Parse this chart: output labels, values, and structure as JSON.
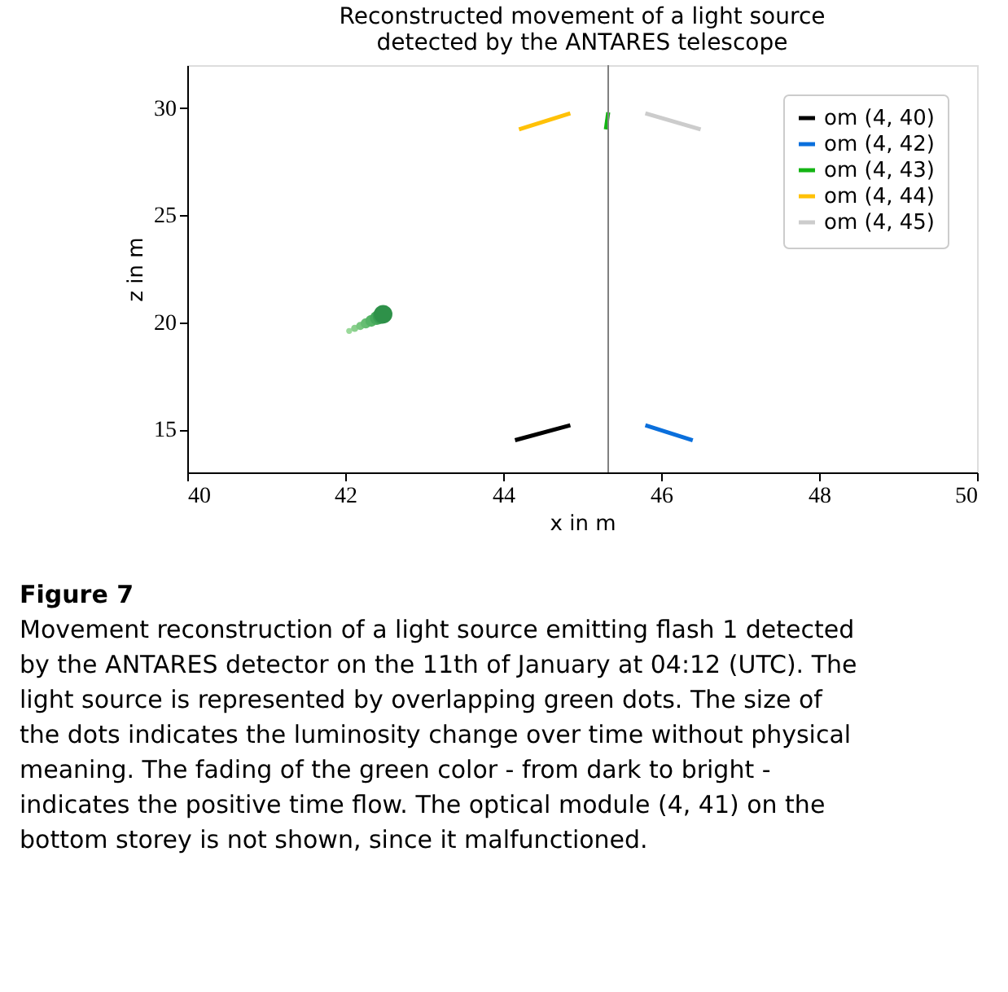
{
  "chart_data": {
    "type": "line",
    "title": [
      "Reconstructed movement of a light source",
      "detected by the ANTARES telescope"
    ],
    "xlabel": "x in m",
    "ylabel": "z in m",
    "xlim": [
      40,
      50
    ],
    "xticks": [
      40,
      42,
      44,
      46,
      48,
      50
    ],
    "ylim": [
      13,
      32
    ],
    "yticks": [
      15,
      20,
      25,
      30
    ],
    "grid": false,
    "legend": "top right",
    "marker": "none",
    "line_style": "solid",
    "series": [
      {
        "name": "om (4, 40)",
        "color": "#000000",
        "x": [
          44.15,
          44.85
        ],
        "values": [
          14.5,
          15.2
        ]
      },
      {
        "name": "om (4, 42)",
        "color": "#0a6fdc",
        "x": [
          45.8,
          46.4
        ],
        "values": [
          15.2,
          14.5
        ]
      },
      {
        "name": "om (4, 43)",
        "color": "#14b414",
        "x": [
          45.3,
          45.33
        ],
        "values": [
          29.0,
          29.8
        ]
      },
      {
        "name": "om (4, 44)",
        "color": "#ffc107",
        "x": [
          44.2,
          44.85
        ],
        "values": [
          29.0,
          29.75
        ]
      },
      {
        "name": "om (4, 45)",
        "color": "#cccccc",
        "x": [
          45.8,
          46.5
        ],
        "values": [
          29.75,
          29.0
        ]
      },
      {
        "type": "bubble",
        "x": [
          42.05,
          42.12,
          42.19,
          42.26,
          42.33,
          42.4,
          42.45,
          42.48
        ],
        "values": [
          19.6,
          19.72,
          19.83,
          19.95,
          20.07,
          20.2,
          20.3,
          20.38
        ],
        "sizes": [
          0.1,
          0.15,
          0.2,
          0.3,
          0.4,
          0.55,
          0.75,
          1
        ],
        "colors": [
          "#9ad99a",
          "#8ad08d",
          "#78c77f",
          "#66bd72",
          "#55b366",
          "#45a85b",
          "#389d52",
          "#2e9149"
        ]
      }
    ],
    "ref_lines": [
      {
        "axis": "x",
        "value": 45.33,
        "color": "#808080"
      }
    ],
    "annotations": [
      "Figure 7",
      "Movement reconstruction of a light source emitting flash 1 detected by the ANTARES detector on the 11th of January at 04:12 (UTC). The light source is represented by overlapping green dots. The size of the dots indicates the luminosity change over time without physical meaning. The fading of the green color - from dark to bright - indicates the positive time flow. The optical module (4, 41) on the bottom storey is not shown, since it malfunctioned."
    ]
  }
}
